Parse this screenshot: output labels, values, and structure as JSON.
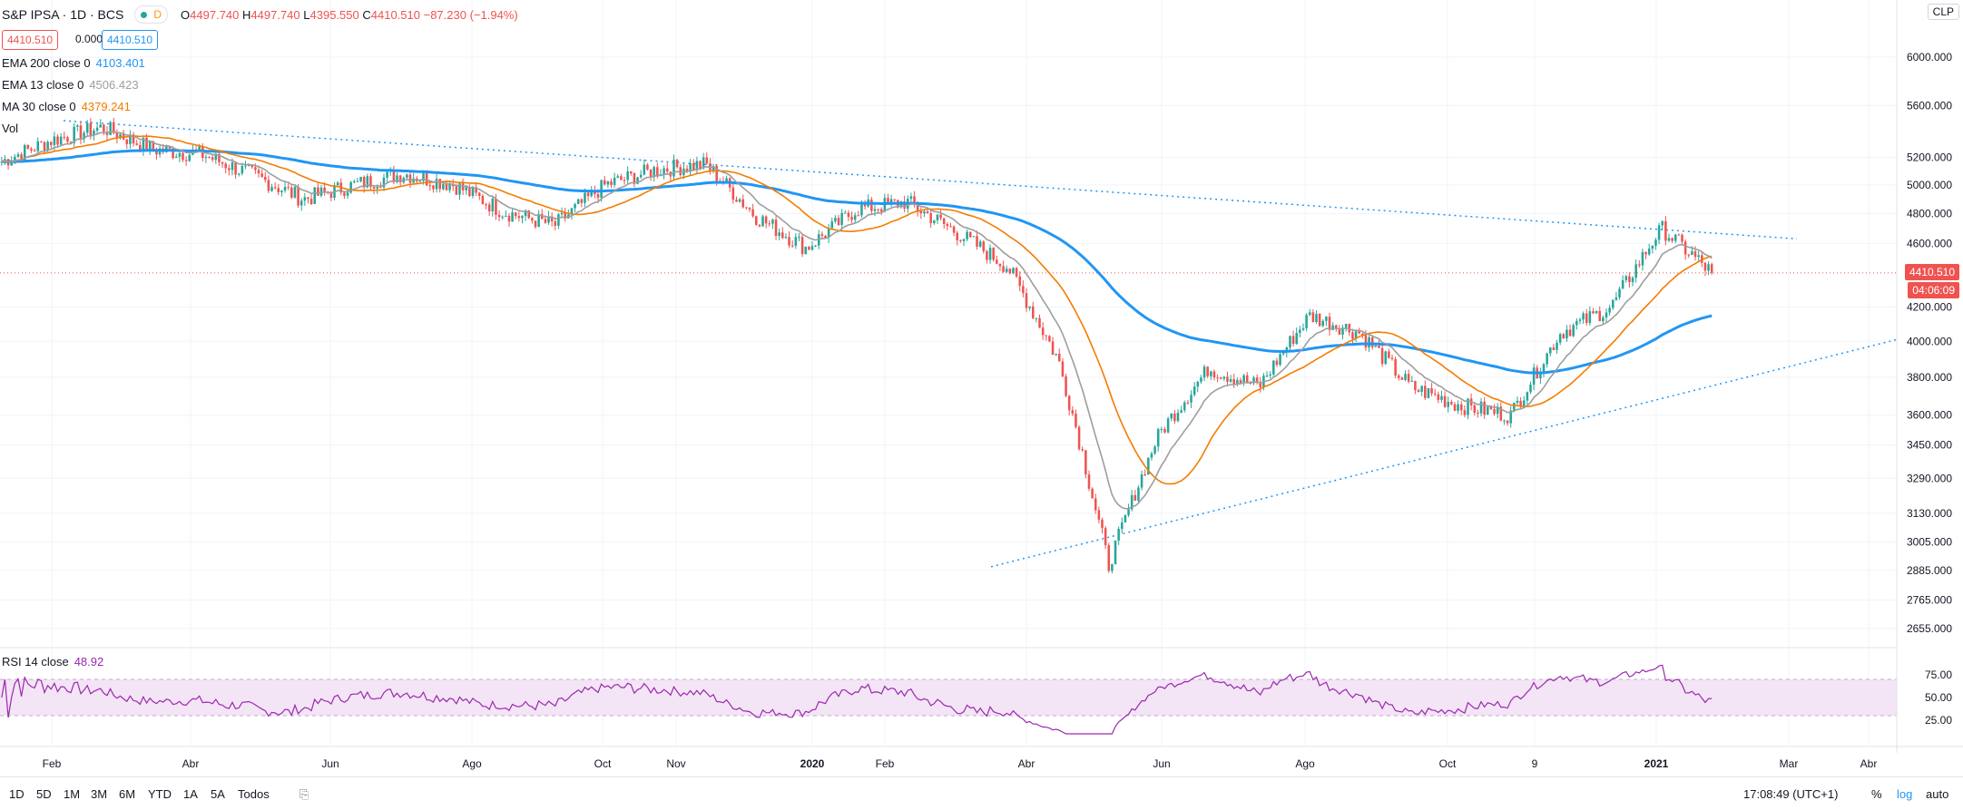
{
  "header": {
    "symbol": "S&P IPSA · 1D · BCS",
    "status_letter": "D",
    "open_label": "O",
    "open": "4497.740",
    "high_label": "H",
    "high": "4497.740",
    "low_label": "L",
    "low": "4395.550",
    "close_label": "C",
    "close": "4410.510",
    "change": "−87.230 (−1.94%)",
    "sell": "4410.510",
    "spread": "0.000",
    "buy": "4410.510"
  },
  "indicators": [
    {
      "label": "EMA 200 close 0",
      "value": "4103.401",
      "color": "#2196f3"
    },
    {
      "label": "EMA 13 close 0",
      "value": "4506.423",
      "color": "#9e9e9e"
    },
    {
      "label": "MA 30 close 0",
      "value": "4379.241",
      "color": "#f57c00"
    },
    {
      "label": "Vol",
      "value": "",
      "color": "#787b86"
    }
  ],
  "rsi": {
    "label": "RSI 14 close",
    "value": "48.92",
    "color": "#9c27b0",
    "ticks": [
      "75.00",
      "50.00",
      "25.00"
    ]
  },
  "price_axis": {
    "currency": "CLP",
    "top_clip": "6000.000",
    "ticks": [
      "6000.000",
      "5600.000",
      "5200.000",
      "5000.000",
      "4800.000",
      "4600.000",
      "4200.000",
      "4000.000",
      "3800.000",
      "3600.000",
      "3450.000",
      "3290.000",
      "3130.000",
      "3005.000",
      "2885.000",
      "2765.000",
      "2655.000"
    ],
    "last_price": "4410.510",
    "countdown": "04:06:09",
    "scale": "log"
  },
  "time_axis": [
    "Feb",
    "Abr",
    "Jun",
    "Ago",
    "Oct",
    "Nov",
    "2020",
    "Feb",
    "Abr",
    "Jun",
    "Ago",
    "Oct",
    "9",
    "2021",
    "Mar",
    "Abr"
  ],
  "bottom_bar": {
    "ranges": [
      "1D",
      "5D",
      "1M",
      "3M",
      "6M",
      "YTD",
      "1A",
      "5A",
      "Todos"
    ],
    "time": "17:08:49 (UTC+1)",
    "percent": "%",
    "log": "log",
    "auto": "auto"
  },
  "colors": {
    "up": "#26a69a",
    "down": "#ef5350",
    "ema200": "#2196f3",
    "ema13": "#9e9e9e",
    "ma30": "#f57c00",
    "rsi": "#9c27b0",
    "trend": "#2196f3"
  },
  "chart_data": {
    "type": "candlestick",
    "title": "S&P IPSA · 1D · BCS",
    "x_start": "2019-01",
    "x_end": "2021-01",
    "y_scale": "log",
    "close_series": [
      {
        "date": "2019-01",
        "value": 5170
      },
      {
        "date": "2019-02",
        "value": 5330
      },
      {
        "date": "2019-02",
        "value": 5430
      },
      {
        "date": "2019-03",
        "value": 5260
      },
      {
        "date": "2019-04",
        "value": 5220
      },
      {
        "date": "2019-05",
        "value": 5070
      },
      {
        "date": "2019-05",
        "value": 4900
      },
      {
        "date": "2019-06",
        "value": 5000
      },
      {
        "date": "2019-07",
        "value": 5080
      },
      {
        "date": "2019-08",
        "value": 5000
      },
      {
        "date": "2019-08",
        "value": 4810
      },
      {
        "date": "2019-09",
        "value": 4720
      },
      {
        "date": "2019-10",
        "value": 5000
      },
      {
        "date": "2019-10",
        "value": 5110
      },
      {
        "date": "2019-10",
        "value": 5150
      },
      {
        "date": "2019-11",
        "value": 4780
      },
      {
        "date": "2019-11",
        "value": 4570
      },
      {
        "date": "2019-12",
        "value": 4830
      },
      {
        "date": "2020-01",
        "value": 4880
      },
      {
        "date": "2020-02",
        "value": 4670
      },
      {
        "date": "2020-02",
        "value": 4450
      },
      {
        "date": "2020-03",
        "value": 3900
      },
      {
        "date": "2020-03",
        "value": 2900
      },
      {
        "date": "2020-04",
        "value": 3500
      },
      {
        "date": "2020-05",
        "value": 3850
      },
      {
        "date": "2020-06",
        "value": 3750
      },
      {
        "date": "2020-07",
        "value": 4150
      },
      {
        "date": "2020-08",
        "value": 4050
      },
      {
        "date": "2020-09",
        "value": 3750
      },
      {
        "date": "2020-10",
        "value": 3650
      },
      {
        "date": "2020-10",
        "value": 3600
      },
      {
        "date": "2020-11",
        "value": 4050
      },
      {
        "date": "2020-12",
        "value": 4200
      },
      {
        "date": "2021-01",
        "value": 4700
      },
      {
        "date": "2021-01",
        "value": 4410
      }
    ],
    "ema200_last": 4103.401,
    "ema13_last": 4506.423,
    "ma30_last": 4379.241,
    "rsi_last": 48.92
  }
}
